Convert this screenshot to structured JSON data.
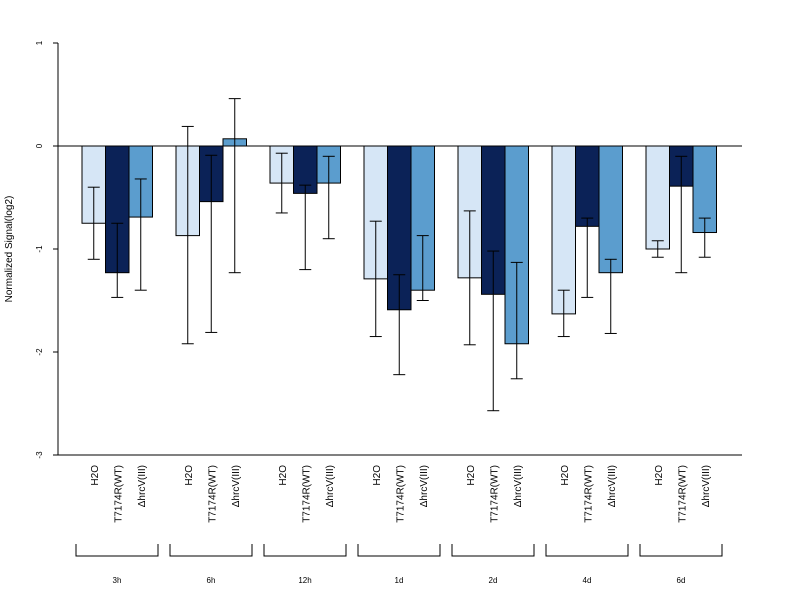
{
  "chart_data": {
    "type": "bar",
    "ylabel": "Normalized Signal(log2)",
    "ylim": [
      -3,
      1
    ],
    "y_ticks": [
      -3,
      -2,
      -1,
      0,
      1
    ],
    "y_tick_labels": [
      "-3",
      "-2",
      "-1",
      "0",
      "1"
    ],
    "groups": [
      "3h",
      "6h",
      "12h",
      "1d",
      "2d",
      "4d",
      "6d"
    ],
    "series": [
      {
        "name": "H2O",
        "color": "#d6e6f6",
        "values": [
          -0.75,
          -0.87,
          -0.36,
          -1.29,
          -1.28,
          -1.63,
          -1.0
        ],
        "err_low": [
          -1.1,
          -1.92,
          -0.65,
          -1.85,
          -1.93,
          -1.85,
          -1.08
        ],
        "err_high": [
          -0.4,
          0.19,
          -0.07,
          -0.73,
          -0.63,
          -1.4,
          -0.92
        ]
      },
      {
        "name": "T7174R(WT)",
        "color": "#0b2257",
        "values": [
          -1.23,
          -0.54,
          -0.46,
          -1.59,
          -1.44,
          -0.78,
          -0.39
        ],
        "err_low": [
          -1.47,
          -1.81,
          -1.2,
          -2.22,
          -2.57,
          -1.47,
          -1.23
        ],
        "err_high": [
          -0.75,
          -0.09,
          -0.38,
          -1.25,
          -1.02,
          -0.7,
          -0.1
        ]
      },
      {
        "name": "ΔhrcV(III)",
        "color": "#5b9dce",
        "values": [
          -0.69,
          0.07,
          -0.36,
          -1.4,
          -1.92,
          -1.23,
          -0.84
        ],
        "err_low": [
          -1.4,
          -1.23,
          -0.9,
          -1.5,
          -2.26,
          -1.82,
          -1.08
        ],
        "err_high": [
          -0.32,
          0.46,
          -0.1,
          -0.87,
          -1.13,
          -1.1,
          -0.7
        ]
      }
    ]
  }
}
